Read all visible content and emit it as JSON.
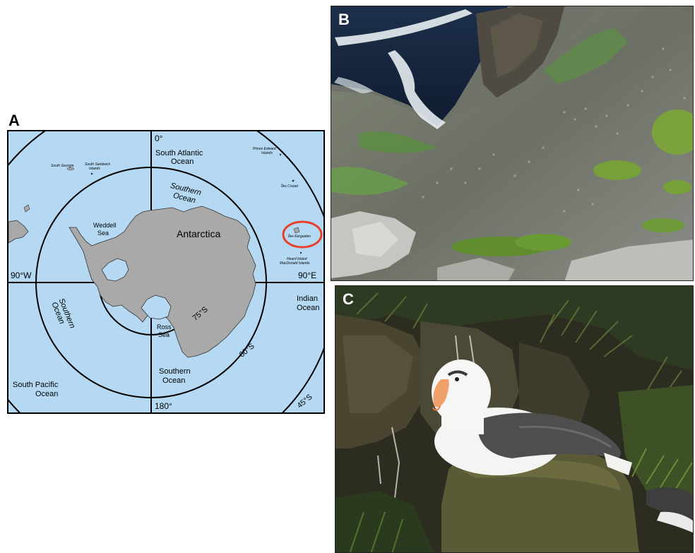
{
  "panels": {
    "a": {
      "letter": "A"
    },
    "b": {
      "letter": "B"
    },
    "c": {
      "letter": "C"
    }
  },
  "map": {
    "meridian_0": "0°",
    "meridian_90w": "90°W",
    "meridian_90e": "90°E",
    "meridian_180": "180°",
    "lat_75": "75°S",
    "lat_60": "60°S",
    "lat_45": "45°S",
    "south_atlantic_1": "South Atlantic",
    "south_atlantic_2": "Ocean",
    "southern_ocean_top_1": "Southern",
    "southern_ocean_top_2": "Ocean",
    "southern_ocean_left_1": "Southern",
    "southern_ocean_left_2": "Ocean",
    "southern_ocean_bottom_1": "Southern",
    "southern_ocean_bottom_2": "Ocean",
    "indian_ocean_1": "Indian",
    "indian_ocean_2": "Ocean",
    "south_pacific_1": "South Pacific",
    "south_pacific_2": "Ocean",
    "antarctica": "Antarctica",
    "weddell_1": "Weddell",
    "weddell_2": "Sea",
    "ross_1": "Ross",
    "ross_2": "Sea",
    "south_georgia": "South Georgia",
    "south_sandwich_1": "South Sandwich",
    "south_sandwich_2": "Islands",
    "prince_edward_1": "Prince Edward",
    "prince_edward_2": "Islands",
    "iles_crozet": "Îles Crozet",
    "iles_kerguelen": "Îles Kerguelen",
    "heard_1": "Heard Island",
    "heard_2": "MacDonald Islands",
    "colors": {
      "ocean": "#b5d9f3",
      "land": "#a9a9a9",
      "highlight": "#e8402a"
    }
  }
}
